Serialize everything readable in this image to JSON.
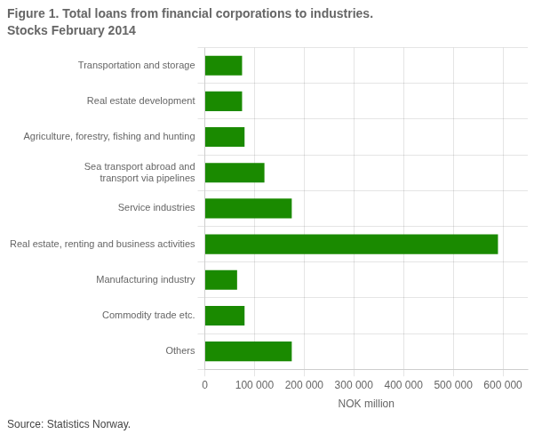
{
  "chart_data": {
    "type": "bar",
    "orientation": "horizontal",
    "title": "Figure 1. Total loans from financial corporations to industries.",
    "subtitle": "Stocks February 2014",
    "source": "Source: Statistics Norway.",
    "categories": [
      "Others",
      "Commodity trade etc.",
      "Manufacturing industry",
      "Real estate, renting and business activities",
      "Service industries",
      "Sea transport abroad and\ntransport via pipelines",
      "Agriculture, forestry, fishing and hunting",
      "Real estate development",
      "Transportation and storage"
    ],
    "values": [
      175000,
      80000,
      65000,
      590000,
      175000,
      120000,
      80000,
      75000,
      75000
    ],
    "color": "#1a8a00",
    "xlabel": "NOK million",
    "xlim": [
      0,
      650000
    ],
    "xticks": [
      0,
      {
        "value": 100000,
        "label": "100 000"
      },
      {
        "value": 200000,
        "label": "200 000"
      },
      {
        "value": 300000,
        "label": "300 000"
      },
      {
        "value": 400000,
        "label": "400 000"
      },
      {
        "value": 500000,
        "label": "500 000"
      },
      {
        "value": 600000,
        "label": "600 000"
      }
    ],
    "grid": true
  }
}
